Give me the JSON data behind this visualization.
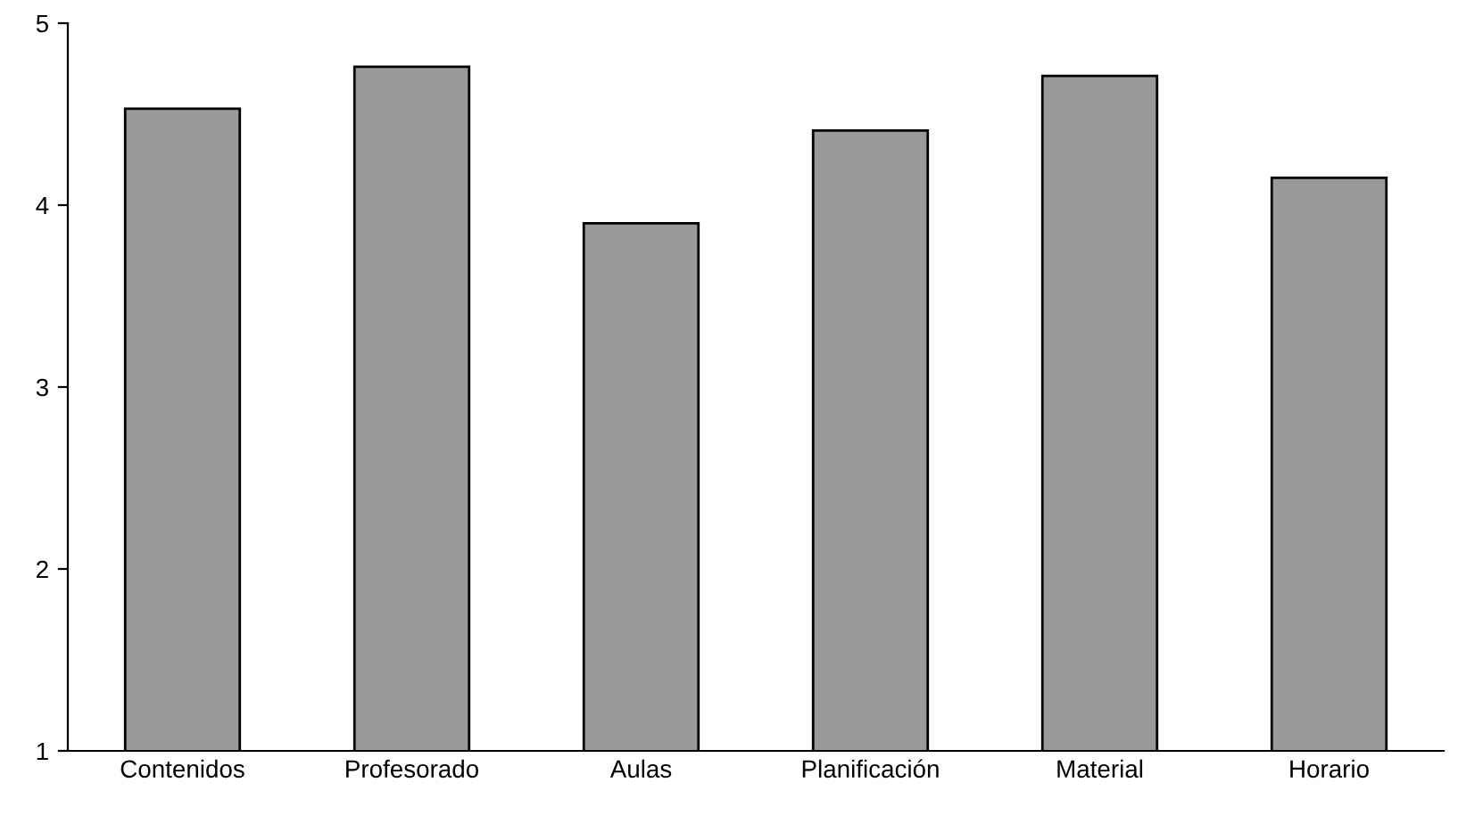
{
  "chart_data": {
    "type": "bar",
    "categories": [
      "Contenidos",
      "Profesorado",
      "Aulas",
      "Planificación",
      "Material",
      "Horario"
    ],
    "values": [
      4.53,
      4.76,
      3.9,
      4.41,
      4.71,
      4.15
    ],
    "color": "#999999",
    "ylim": [
      1,
      5
    ],
    "yticks": [
      1,
      2,
      3,
      4,
      5
    ],
    "grid": false,
    "legend": false
  }
}
